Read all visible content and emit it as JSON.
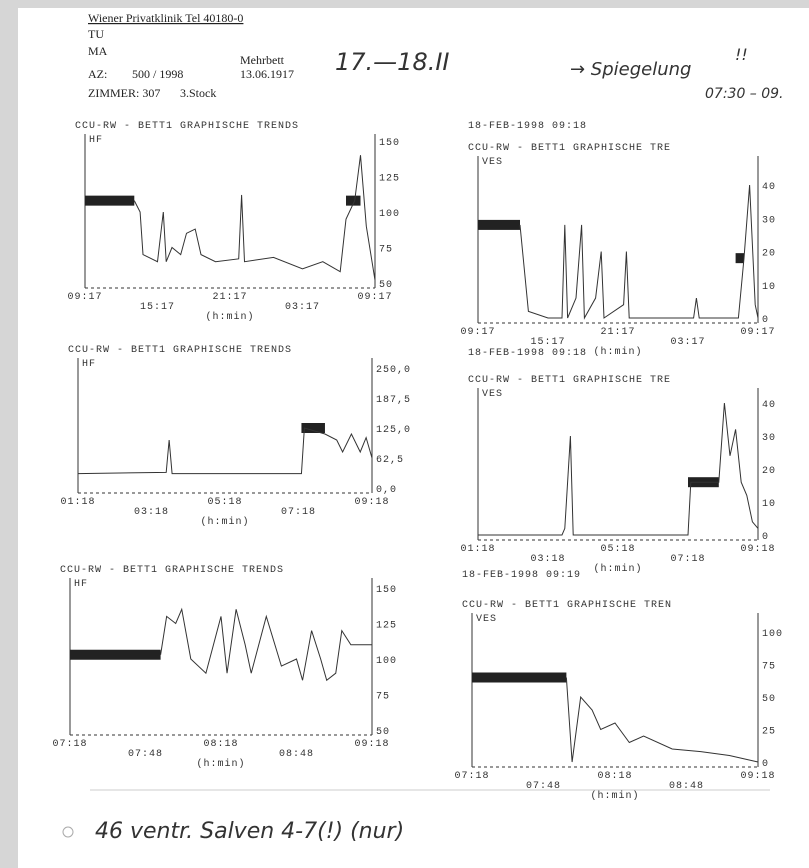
{
  "header": {
    "clinic": "Wiener Privatklinik Tel 40180-0",
    "line2": "TU",
    "line3": "MA",
    "bed": "Mehrbett",
    "az_label": "AZ:",
    "az_value": "500 / 1998",
    "birth": "13.06.1917",
    "room": "ZIMMER: 307",
    "floor": "3.Stock"
  },
  "handwriting": {
    "dates": "17.—18.II",
    "note": "→ Spiegelung",
    "marks": "!!",
    "time": "07:30 – 09.",
    "bottom": "46 ventr. Salven 4-7(!) (nur)"
  },
  "panels": [
    {
      "title": "CCU-RW - BETT1 GRAPHISCHE TRENDS",
      "param": "HF",
      "yticks": [
        "150",
        "125",
        "100",
        "75",
        "50"
      ],
      "xticks": [
        "09:17",
        "15:17",
        "21:17",
        "03:17",
        "09:17"
      ],
      "unit": "(h:min)"
    },
    {
      "date": "18-FEB-1998 09:18",
      "title": "CCU-RW - BETT1 GRAPHISCHE TRE",
      "param": "VES",
      "yticks": [
        "40",
        "30",
        "20",
        "10",
        "0"
      ],
      "xticks": [
        "09:17",
        "15:17",
        "21:17",
        "03:17",
        "09:17"
      ],
      "unit": "(h:min)"
    },
    {
      "title": "CCU-RW - BETT1 GRAPHISCHE TRENDS",
      "param": "HF",
      "yticks": [
        "250,0",
        "187,5",
        "125,0",
        "62,5",
        "0,0"
      ],
      "xticks": [
        "01:18",
        "03:18",
        "05:18",
        "07:18",
        "09:18"
      ],
      "unit": "(h:min)"
    },
    {
      "date": "18-FEB-1998 09:18",
      "title": "CCU-RW - BETT1 GRAPHISCHE TRE",
      "param": "VES",
      "yticks": [
        "40",
        "30",
        "20",
        "10",
        "0"
      ],
      "xticks": [
        "01:18",
        "03:18",
        "05:18",
        "07:18",
        "09:18"
      ],
      "unit": "(h:min)"
    },
    {
      "title": "CCU-RW - BETT1 GRAPHISCHE TRENDS",
      "param": "HF",
      "yticks": [
        "150",
        "125",
        "100",
        "75",
        "50"
      ],
      "xticks": [
        "07:18",
        "07:48",
        "08:18",
        "08:48",
        "09:18"
      ],
      "unit": "(h:min)"
    },
    {
      "date": "18-FEB-1998 09:19",
      "title": "CCU-RW - BETT1 GRAPHISCHE TREN",
      "param": "VES",
      "yticks": [
        "100",
        "75",
        "50",
        "25",
        "0"
      ],
      "xticks": [
        "07:18",
        "07:48",
        "08:18",
        "08:48",
        "09:18"
      ],
      "unit": "(h:min)"
    }
  ]
}
